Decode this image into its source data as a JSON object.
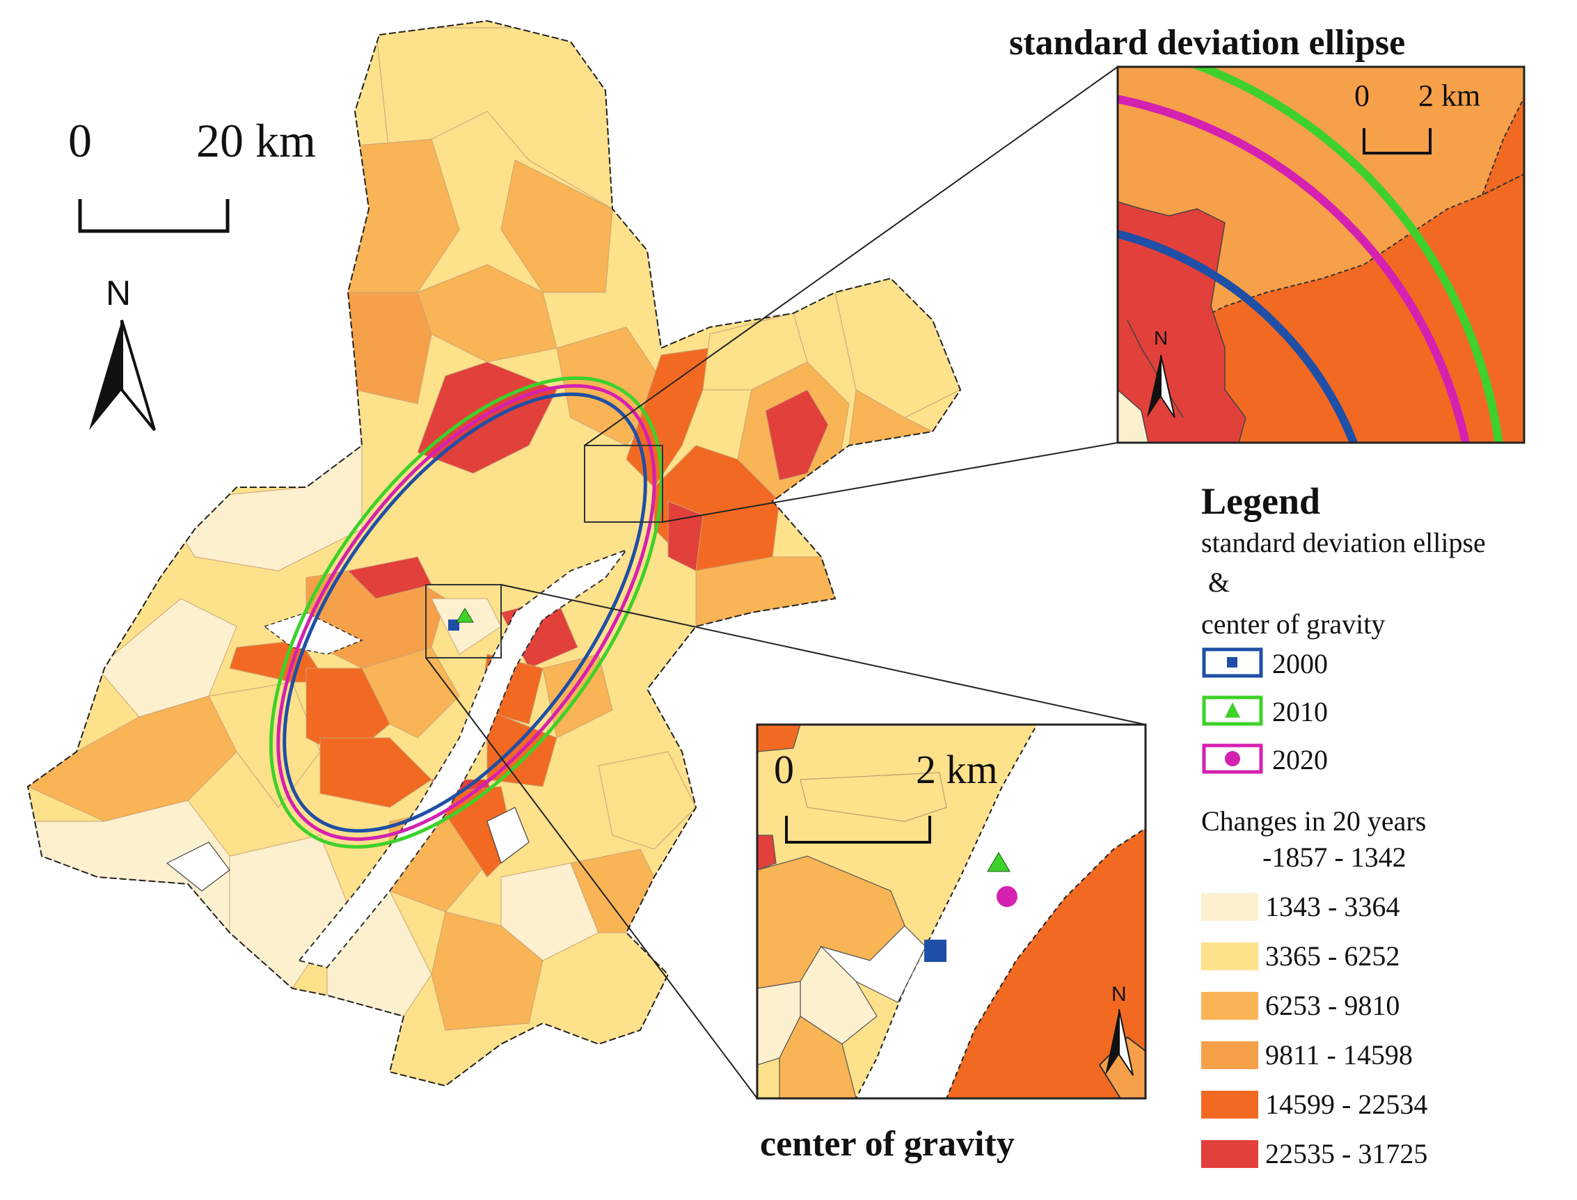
{
  "main_map": {
    "scale_bar": {
      "start_label": "0",
      "end_label": "20 km"
    },
    "north_arrow": {
      "label": "N"
    }
  },
  "inset_ellipse": {
    "title": "standard deviation ellipse",
    "scale_bar": {
      "start_label": "0",
      "end_label": "2 km"
    },
    "north_arrow": {
      "label": "N"
    }
  },
  "inset_gravity": {
    "title": "center of gravity",
    "scale_bar": {
      "start_label": "0",
      "end_label": "2 km"
    },
    "north_arrow": {
      "label": "N"
    }
  },
  "legend": {
    "title": "Legend",
    "section_title_lines": [
      "standard deviation ellipse",
      " &",
      "center of gravity"
    ],
    "years": [
      {
        "label": "2000",
        "color": "#1f4fa6",
        "symbol": "square"
      },
      {
        "label": "2010",
        "color": "#3ed12a",
        "symbol": "triangle"
      },
      {
        "label": "2020",
        "color": "#d421b0",
        "symbol": "circle"
      }
    ],
    "classes_title": "Changes in 20 years",
    "classes": [
      {
        "label": "-1857 - 1342",
        "color": "#ffffff"
      },
      {
        "label": "1343 - 3364",
        "color": "#fdf0cf"
      },
      {
        "label": "3365 - 6252",
        "color": "#fde18b"
      },
      {
        "label": "6253 - 9810",
        "color": "#f9b455"
      },
      {
        "label": "9811 - 14598",
        "color": "#f7a04a"
      },
      {
        "label": "14599 - 22534",
        "color": "#f26a22"
      },
      {
        "label": "22535 - 31725",
        "color": "#e2403a"
      }
    ]
  }
}
